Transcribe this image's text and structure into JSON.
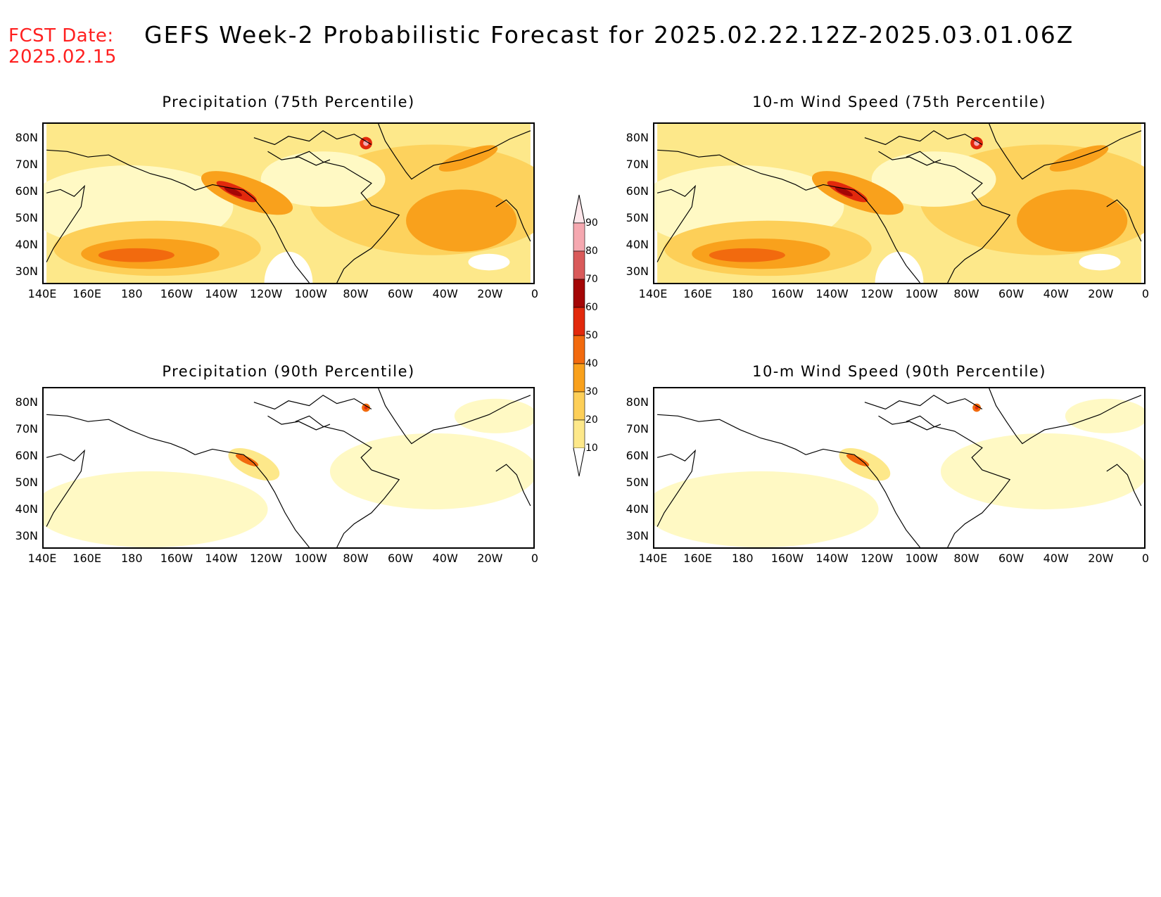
{
  "fcst": {
    "line1": "FCST Date:",
    "line2": "2025.02.15"
  },
  "title": "GEFS Week-2 Probabilistic Forecast for 2025.02.22.12Z-2025.03.01.06Z",
  "panels": [
    {
      "id": "precip75",
      "title": "Precipitation (75th Percentile)",
      "intensity": "high"
    },
    {
      "id": "wind75",
      "title": "10-m Wind Speed (75th Percentile)",
      "intensity": "high"
    },
    {
      "id": "precip90",
      "title": "Precipitation (90th Percentile)",
      "intensity": "low"
    },
    {
      "id": "wind90",
      "title": "10-m Wind Speed (90th Percentile)",
      "intensity": "low"
    }
  ],
  "axes": {
    "lat_labels": [
      "80N",
      "70N",
      "60N",
      "50N",
      "40N",
      "30N"
    ],
    "lon_labels": [
      "140E",
      "160E",
      "180",
      "160W",
      "140W",
      "120W",
      "100W",
      "80W",
      "60W",
      "40W",
      "20W",
      "0"
    ]
  },
  "colorbar": {
    "levels": [
      "10",
      "20",
      "30",
      "40",
      "50",
      "60",
      "70",
      "80",
      "90"
    ],
    "colors": [
      "#fff9c4",
      "#fde88a",
      "#fdcf58",
      "#f9a11c",
      "#f26a0e",
      "#e2290c",
      "#a40606",
      "#d95a5a",
      "#f5a8b0",
      "#fde6ea"
    ]
  }
}
